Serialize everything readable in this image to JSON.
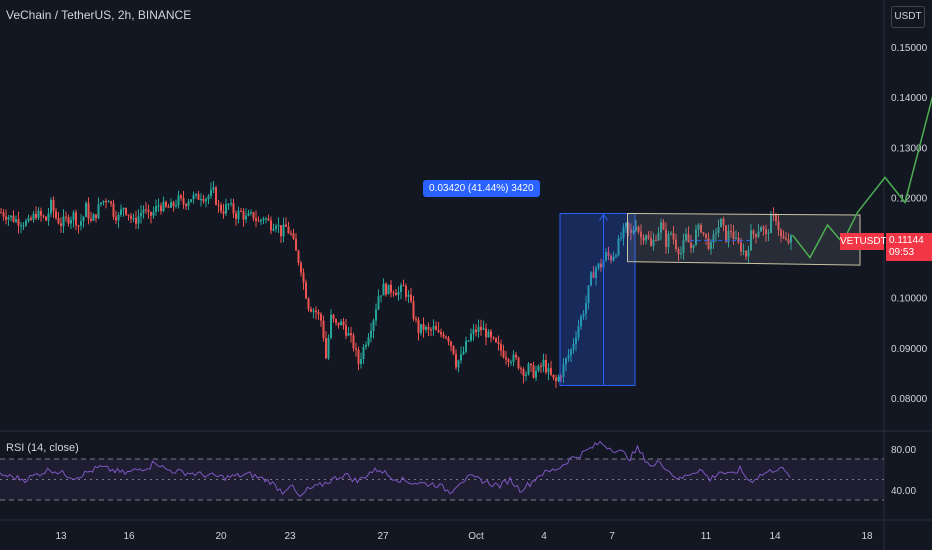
{
  "header": {
    "title": "VeChain / TetherUS, 2h, BINANCE"
  },
  "price_axis": {
    "currency": "USDT",
    "labels": [
      "0.15000",
      "0.14000",
      "0.13000",
      "0.12000",
      "0.10000",
      "0.09000",
      "0.08000"
    ]
  },
  "symbol_tag": {
    "symbol": "VETUSDT",
    "price": "0.11144",
    "countdown": "09:53"
  },
  "measure_tool": {
    "label": "0.03420 (41.44%) 3420"
  },
  "rsi": {
    "title": "RSI (14, close)",
    "labels": [
      "80.00",
      "40.00"
    ]
  },
  "time_axis": {
    "labels": [
      "13",
      "16",
      "20",
      "23",
      "27",
      "Oct",
      "4",
      "7",
      "11",
      "14",
      "18"
    ]
  },
  "colors": {
    "up": "#26a69a",
    "down": "#ef5350",
    "rsi": "#7e57c2",
    "projection": "#4caf50",
    "measure": "#2962ff",
    "price_tag": "#f23645"
  },
  "chart_data": {
    "type": "candlestick",
    "symbol": "VETUSDT",
    "interval": "2h",
    "ylim": [
      0.078,
      0.158
    ],
    "close_path": [
      [
        0,
        0.117
      ],
      [
        6,
        0.1155
      ],
      [
        11,
        0.1148
      ],
      [
        14,
        0.1168
      ],
      [
        18,
        0.1155
      ],
      [
        20,
        0.1185
      ],
      [
        22,
        0.116
      ],
      [
        24,
        0.1148
      ],
      [
        26,
        0.1155
      ],
      [
        29,
        0.1165
      ],
      [
        31,
        0.1145
      ],
      [
        33,
        0.1162
      ],
      [
        34,
        0.118
      ],
      [
        36,
        0.115
      ],
      [
        38,
        0.1168
      ],
      [
        40,
        0.119
      ],
      [
        43,
        0.12
      ],
      [
        45,
        0.117
      ],
      [
        47,
        0.116
      ],
      [
        49,
        0.1182
      ],
      [
        51,
        0.1168
      ],
      [
        53,
        0.115
      ],
      [
        55,
        0.1162
      ],
      [
        57,
        0.1178
      ],
      [
        59,
        0.116
      ],
      [
        61,
        0.117
      ],
      [
        63,
        0.1185
      ],
      [
        66,
        0.1178
      ],
      [
        68,
        0.118
      ],
      [
        71,
        0.1195
      ],
      [
        73,
        0.1188
      ],
      [
        76,
        0.12
      ],
      [
        78,
        0.1198
      ],
      [
        80,
        0.1205
      ],
      [
        82,
        0.12
      ],
      [
        85,
        0.121
      ],
      [
        87,
        0.118
      ],
      [
        89,
        0.1175
      ],
      [
        91,
        0.1185
      ],
      [
        94,
        0.1165
      ],
      [
        96,
        0.117
      ],
      [
        98,
        0.1158
      ],
      [
        101,
        0.1164
      ],
      [
        103,
        0.115
      ],
      [
        105,
        0.1162
      ],
      [
        108,
        0.1145
      ],
      [
        110,
        0.1152
      ],
      [
        112,
        0.113
      ],
      [
        114,
        0.114
      ],
      [
        116,
        0.1125
      ],
      [
        118,
        0.109
      ],
      [
        120,
        0.106
      ],
      [
        121,
        0.103
      ],
      [
        123,
        0.0985
      ],
      [
        126,
        0.0972
      ],
      [
        128,
        0.0955
      ],
      [
        129,
        0.0925
      ],
      [
        130,
        0.088
      ],
      [
        131,
        0.092
      ],
      [
        132,
        0.096
      ],
      [
        134,
        0.0945
      ],
      [
        135,
        0.095
      ],
      [
        137,
        0.0945
      ],
      [
        139,
        0.0925
      ],
      [
        141,
        0.0905
      ],
      [
        143,
        0.087
      ],
      [
        145,
        0.09
      ],
      [
        147,
        0.093
      ],
      [
        149,
        0.096
      ],
      [
        151,
        0.1005
      ],
      [
        153,
        0.102
      ],
      [
        155,
        0.1015
      ],
      [
        157,
        0.1018
      ],
      [
        159,
        0.101
      ],
      [
        161,
        0.102
      ],
      [
        163,
        0.1
      ],
      [
        165,
        0.0965
      ],
      [
        167,
        0.0935
      ],
      [
        169,
        0.094
      ],
      [
        171,
        0.0932
      ],
      [
        173,
        0.0938
      ],
      [
        175,
        0.0925
      ],
      [
        177,
        0.093
      ],
      [
        179,
        0.092
      ],
      [
        181,
        0.0895
      ],
      [
        182,
        0.087
      ],
      [
        184,
        0.088
      ],
      [
        186,
        0.0905
      ],
      [
        188,
        0.0925
      ],
      [
        190,
        0.0935
      ],
      [
        192,
        0.0938
      ],
      [
        194,
        0.093
      ],
      [
        196,
        0.0915
      ],
      [
        198,
        0.0905
      ],
      [
        200,
        0.0895
      ],
      [
        202,
        0.0885
      ],
      [
        204,
        0.088
      ],
      [
        206,
        0.0875
      ],
      [
        208,
        0.086
      ],
      [
        210,
        0.085
      ],
      [
        211,
        0.086
      ],
      [
        213,
        0.085
      ],
      [
        215,
        0.0855
      ],
      [
        217,
        0.087
      ],
      [
        219,
        0.085
      ],
      [
        221,
        0.0835
      ],
      [
        222,
        0.0832
      ],
      [
        224,
        0.085
      ],
      [
        226,
        0.0875
      ],
      [
        228,
        0.0895
      ],
      [
        230,
        0.093
      ],
      [
        232,
        0.096
      ],
      [
        234,
        0.099
      ],
      [
        236,
        0.104
      ],
      [
        238,
        0.106
      ],
      [
        240,
        0.1065
      ],
      [
        242,
        0.1085
      ],
      [
        244,
        0.108
      ],
      [
        246,
        0.1095
      ],
      [
        248,
        0.112
      ],
      [
        250,
        0.114
      ],
      [
        252,
        0.1125
      ],
      [
        254,
        0.115
      ],
      [
        256,
        0.112
      ],
      [
        258,
        0.113
      ],
      [
        260,
        0.11
      ],
      [
        262,
        0.1125
      ],
      [
        264,
        0.1145
      ],
      [
        266,
        0.111
      ],
      [
        268,
        0.113
      ],
      [
        270,
        0.1105
      ],
      [
        272,
        0.109
      ],
      [
        274,
        0.112
      ],
      [
        276,
        0.11
      ],
      [
        278,
        0.113
      ],
      [
        280,
        0.114
      ],
      [
        282,
        0.1115
      ],
      [
        284,
        0.11
      ],
      [
        286,
        0.1135
      ],
      [
        288,
        0.115
      ],
      [
        290,
        0.112
      ],
      [
        292,
        0.1135
      ],
      [
        294,
        0.111
      ],
      [
        296,
        0.11
      ],
      [
        298,
        0.1085
      ],
      [
        300,
        0.1125
      ],
      [
        302,
        0.113
      ],
      [
        304,
        0.1145
      ],
      [
        306,
        0.112
      ],
      [
        308,
        0.1155
      ],
      [
        310,
        0.116
      ],
      [
        312,
        0.112
      ],
      [
        314,
        0.111
      ],
      [
        316,
        0.1115
      ]
    ],
    "last_price": 0.11144,
    "channel": {
      "from_x": 251,
      "to_x": 344,
      "upper": 0.1168,
      "lower": 0.1072
    },
    "measure": {
      "from_x": 224,
      "to_x": 254,
      "low": 0.0825,
      "high": 0.1168,
      "change": 0.0342,
      "percent": 41.44,
      "ticks": 3420
    },
    "projection": [
      [
        317,
        0.1125
      ],
      [
        324,
        0.108
      ],
      [
        331,
        0.1145
      ],
      [
        337,
        0.111
      ],
      [
        343,
        0.117
      ],
      [
        354,
        0.124
      ],
      [
        362,
        0.119
      ],
      [
        374,
        0.142
      ],
      [
        385,
        0.1335
      ],
      [
        397,
        0.1535
      ]
    ],
    "rsi_series": [
      [
        0,
        55
      ],
      [
        10,
        50
      ],
      [
        20,
        60
      ],
      [
        30,
        52
      ],
      [
        40,
        62
      ],
      [
        50,
        56
      ],
      [
        60,
        63
      ],
      [
        62,
        68
      ],
      [
        66,
        60
      ],
      [
        70,
        58
      ],
      [
        80,
        55
      ],
      [
        90,
        52
      ],
      [
        100,
        55
      ],
      [
        108,
        48
      ],
      [
        113,
        38
      ],
      [
        116,
        45
      ],
      [
        120,
        32
      ],
      [
        123,
        40
      ],
      [
        128,
        44
      ],
      [
        133,
        50
      ],
      [
        138,
        55
      ],
      [
        143,
        48
      ],
      [
        148,
        57
      ],
      [
        152,
        60
      ],
      [
        156,
        53
      ],
      [
        160,
        50
      ],
      [
        165,
        47
      ],
      [
        170,
        46
      ],
      [
        175,
        45
      ],
      [
        180,
        38
      ],
      [
        184,
        48
      ],
      [
        188,
        52
      ],
      [
        192,
        50
      ],
      [
        196,
        46
      ],
      [
        200,
        44
      ],
      [
        204,
        50
      ],
      [
        208,
        40
      ],
      [
        212,
        46
      ],
      [
        216,
        55
      ],
      [
        220,
        58
      ],
      [
        224,
        62
      ],
      [
        228,
        70
      ],
      [
        232,
        74
      ],
      [
        236,
        80
      ],
      [
        240,
        86
      ],
      [
        243,
        82
      ],
      [
        246,
        79
      ],
      [
        249,
        76
      ],
      [
        252,
        71
      ],
      [
        255,
        80
      ],
      [
        258,
        70
      ],
      [
        261,
        62
      ],
      [
        264,
        68
      ],
      [
        268,
        57
      ],
      [
        272,
        50
      ],
      [
        276,
        56
      ],
      [
        280,
        60
      ],
      [
        284,
        50
      ],
      [
        288,
        58
      ],
      [
        292,
        54
      ],
      [
        296,
        60
      ],
      [
        300,
        48
      ],
      [
        304,
        54
      ],
      [
        308,
        58
      ],
      [
        312,
        62
      ],
      [
        316,
        52
      ]
    ],
    "rsi_levels": [
      70,
      50,
      30
    ]
  }
}
